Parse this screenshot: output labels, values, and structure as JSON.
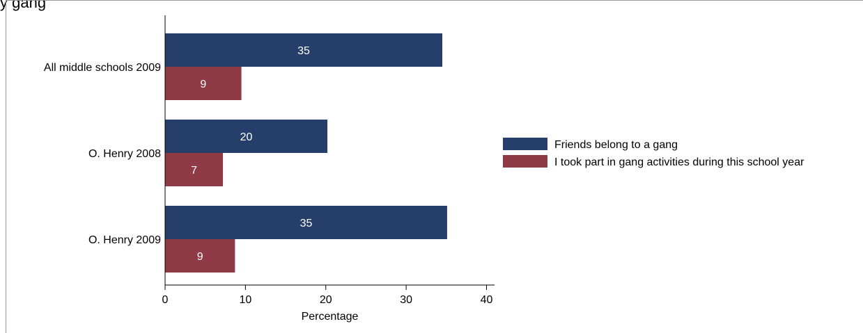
{
  "title_fragment": "y gang",
  "colors": {
    "series_friends": "#263f6a",
    "series_took_part": "#8f3a44"
  },
  "chart_data": {
    "type": "bar",
    "orientation": "horizontal",
    "title": "",
    "xlabel": "Percentage",
    "ylabel": "",
    "xlim": [
      0,
      41
    ],
    "xticks": [
      0,
      10,
      20,
      30,
      40
    ],
    "grid": false,
    "legend_position": "right",
    "categories": [
      "All middle schools 2009",
      "O. Henry 2008",
      "O. Henry 2009"
    ],
    "series": [
      {
        "name": "Friends belong to a gang",
        "values": [
          34.5,
          20.2,
          35.1
        ],
        "labels": [
          "35",
          "20",
          "35"
        ],
        "color": "#263f6a"
      },
      {
        "name": "I took part in gang activities during this school year",
        "values": [
          9.5,
          7.2,
          8.7
        ],
        "labels": [
          "9",
          "7",
          "9"
        ],
        "color": "#8f3a44"
      }
    ]
  }
}
